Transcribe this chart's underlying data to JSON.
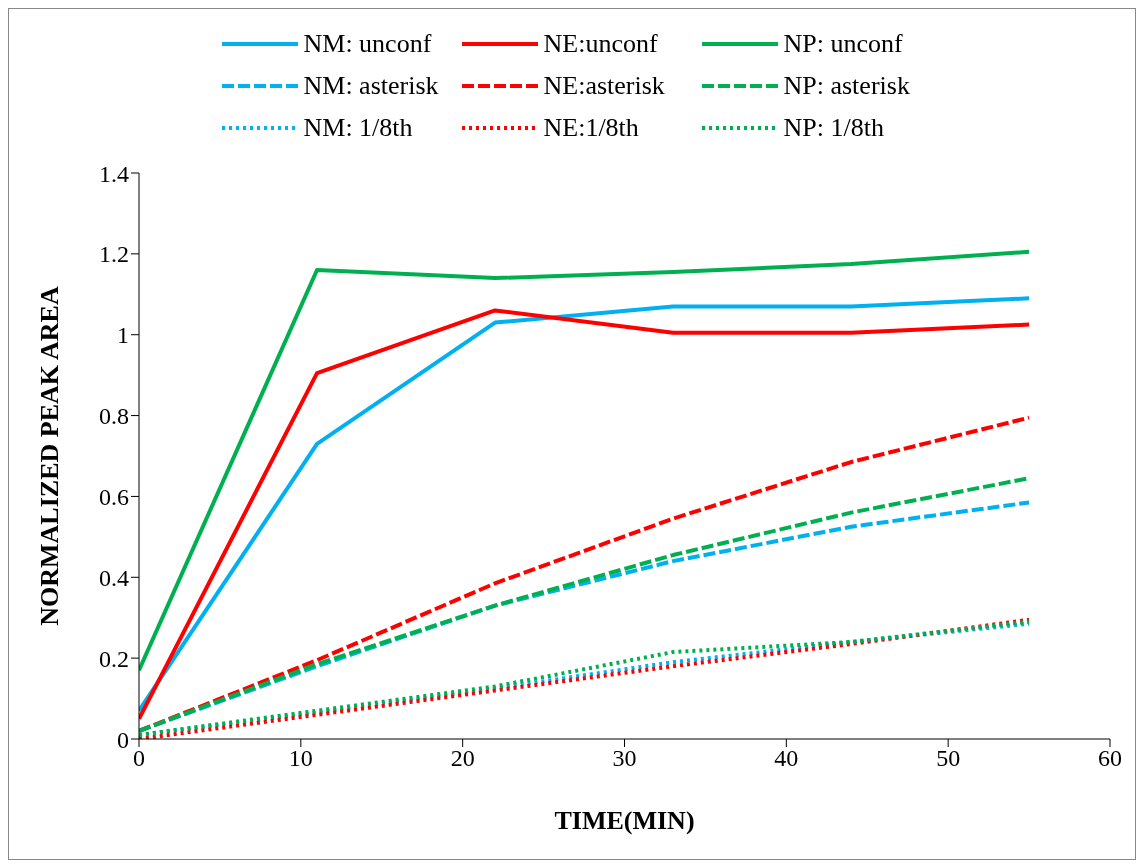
{
  "chart_data": {
    "type": "line",
    "xlabel": "TIME(MIN)",
    "ylabel": "NORMALIZED PEAK AREA",
    "x": [
      0,
      11,
      22,
      33,
      44,
      55
    ],
    "xlim": [
      0,
      60
    ],
    "xticks": [
      0,
      10,
      20,
      30,
      40,
      50,
      60
    ],
    "ylim": [
      0,
      1.4
    ],
    "yticks": [
      0,
      0.2,
      0.4,
      0.6,
      0.8,
      1,
      1.2,
      1.4
    ],
    "grid": false,
    "legend": "top",
    "marker": "none",
    "series": [
      {
        "name": "NM: unconf",
        "color": "#00b0f0",
        "line_style": "solid",
        "values": [
          0.07,
          0.73,
          1.03,
          1.07,
          1.07,
          1.09
        ]
      },
      {
        "name": "NE:unconf",
        "color": "#ff0000",
        "line_style": "solid",
        "values": [
          0.05,
          0.905,
          1.06,
          1.005,
          1.005,
          1.025
        ]
      },
      {
        "name": "NP: unconf",
        "color": "#00b050",
        "line_style": "solid",
        "values": [
          0.17,
          1.16,
          1.14,
          1.155,
          1.175,
          1.205
        ]
      },
      {
        "name": "NM: asterisk",
        "color": "#00b0f0",
        "line_style": "dashed",
        "values": [
          0.02,
          0.18,
          0.33,
          0.44,
          0.525,
          0.585
        ]
      },
      {
        "name": "NE:asterisk",
        "color": "#ff0000",
        "line_style": "dashed",
        "values": [
          0.02,
          0.195,
          0.385,
          0.545,
          0.685,
          0.795
        ]
      },
      {
        "name": "NP: asterisk",
        "color": "#00b050",
        "line_style": "dashed",
        "values": [
          0.02,
          0.185,
          0.33,
          0.455,
          0.56,
          0.645
        ]
      },
      {
        "name": "NM: 1/8th",
        "color": "#00b0f0",
        "line_style": "dotted",
        "values": [
          0.01,
          0.065,
          0.125,
          0.19,
          0.24,
          0.285
        ]
      },
      {
        "name": "NE:1/8th",
        "color": "#ff0000",
        "line_style": "dotted",
        "values": [
          0,
          0.06,
          0.12,
          0.18,
          0.235,
          0.295
        ]
      },
      {
        "name": "NP: 1/8th",
        "color": "#00b050",
        "line_style": "dotted",
        "values": [
          0.01,
          0.07,
          0.13,
          0.215,
          0.24,
          0.29
        ]
      }
    ]
  }
}
